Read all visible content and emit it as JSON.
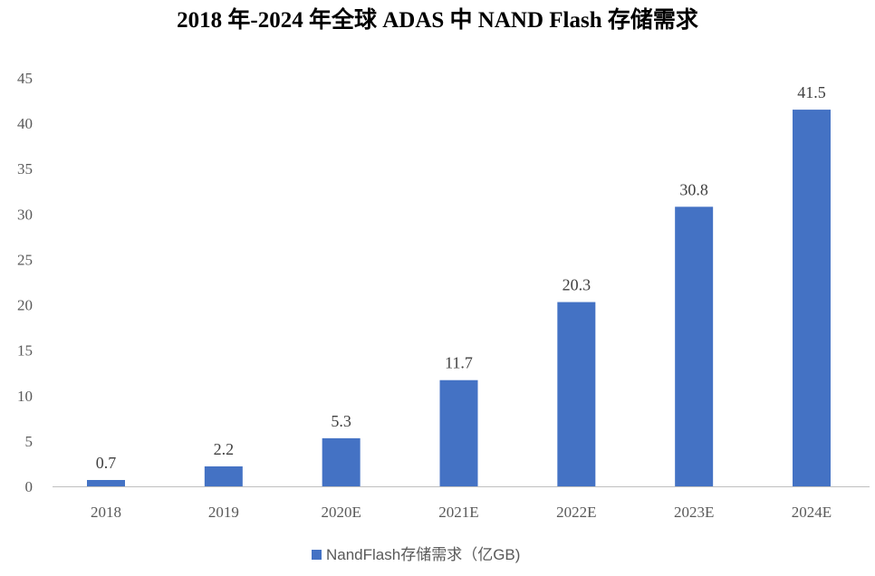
{
  "chart_data": {
    "type": "bar",
    "title": "2018 年-2024 年全球 ADAS 中 NAND Flash 存储需求",
    "categories": [
      "2018",
      "2019",
      "2020E",
      "2021E",
      "2022E",
      "2023E",
      "2024E"
    ],
    "series": [
      {
        "name": "NandFlash存储需求（亿GB)",
        "color": "#4472c4",
        "values": [
          0.7,
          2.2,
          5.3,
          11.7,
          20.3,
          30.8,
          41.5
        ]
      }
    ],
    "data_labels": [
      "0.7",
      "2.2",
      "5.3",
      "11.7",
      "20.3",
      "30.8",
      "41.5"
    ],
    "yticks": [
      "0",
      "5",
      "10",
      "15",
      "20",
      "25",
      "30",
      "35",
      "40",
      "45"
    ],
    "ylim": [
      0,
      45
    ],
    "grid": false,
    "legend_position": "bottom"
  }
}
